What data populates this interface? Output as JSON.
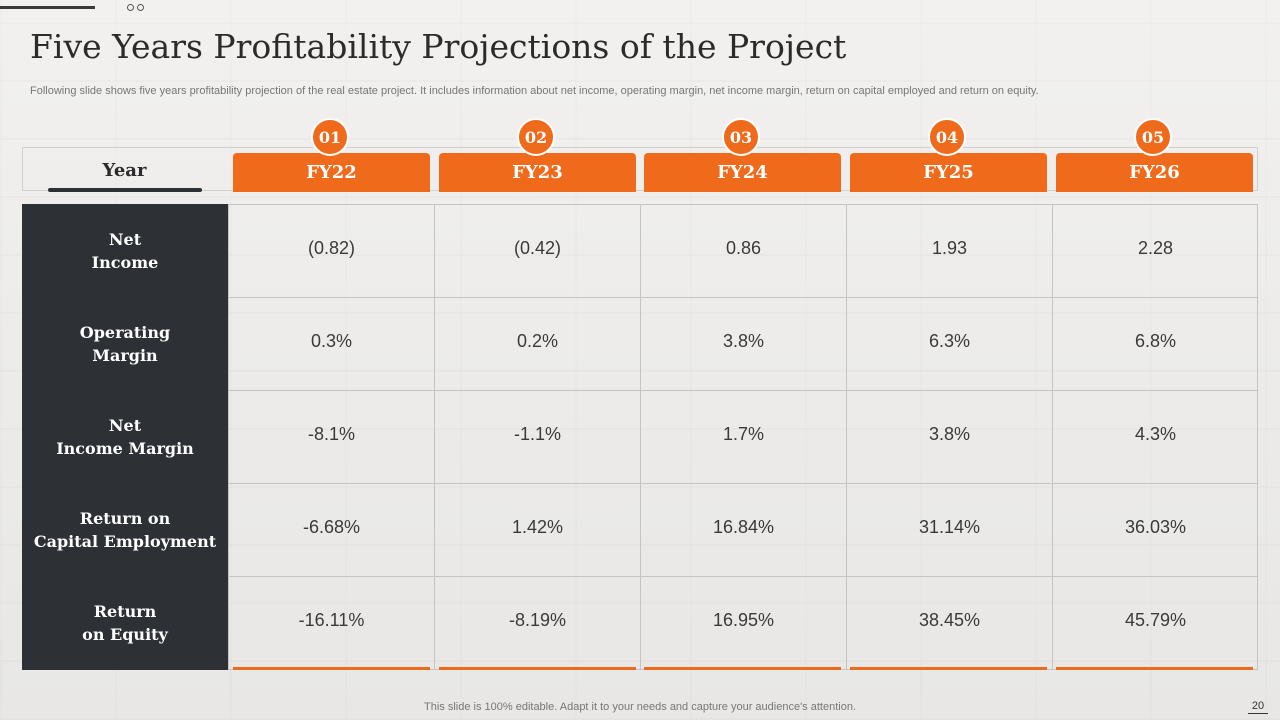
{
  "slide": {
    "title": "Five Years Profitability Projections of the Project",
    "subtitle": "Following slide shows five years profitability projection of the real estate project. It includes information about net income, operating margin, net income margin, return on capital employed and return on equity.",
    "footer": "This slide is 100% editable. Adapt it to your needs and capture your audience's attention.",
    "page_number": "20"
  },
  "table": {
    "header_label": "Year",
    "years": [
      {
        "number": "01",
        "label": "FY22"
      },
      {
        "number": "02",
        "label": "FY23"
      },
      {
        "number": "03",
        "label": "FY24"
      },
      {
        "number": "04",
        "label": "FY25"
      },
      {
        "number": "05",
        "label": "FY26"
      }
    ],
    "rows": [
      {
        "label": "Net\nIncome",
        "values": [
          "(0.82)",
          "(0.42)",
          "0.86",
          "1.93",
          "2.28"
        ]
      },
      {
        "label": "Operating\nMargin",
        "values": [
          "0.3%",
          "0.2%",
          "3.8%",
          "6.3%",
          "6.8%"
        ]
      },
      {
        "label": "Net\nIncome Margin",
        "values": [
          "-8.1%",
          "-1.1%",
          "1.7%",
          "3.8%",
          "4.3%"
        ]
      },
      {
        "label": "Return on\nCapital Employment",
        "values": [
          "-6.68%",
          "1.42%",
          "16.84%",
          "31.14%",
          "36.03%"
        ]
      },
      {
        "label": "Return\non Equity",
        "values": [
          "-16.11%",
          "-8.19%",
          "16.95%",
          "38.45%",
          "45.79%"
        ]
      }
    ]
  },
  "colors": {
    "accent": "#ef6a1a",
    "label_column": "#2d3135"
  }
}
